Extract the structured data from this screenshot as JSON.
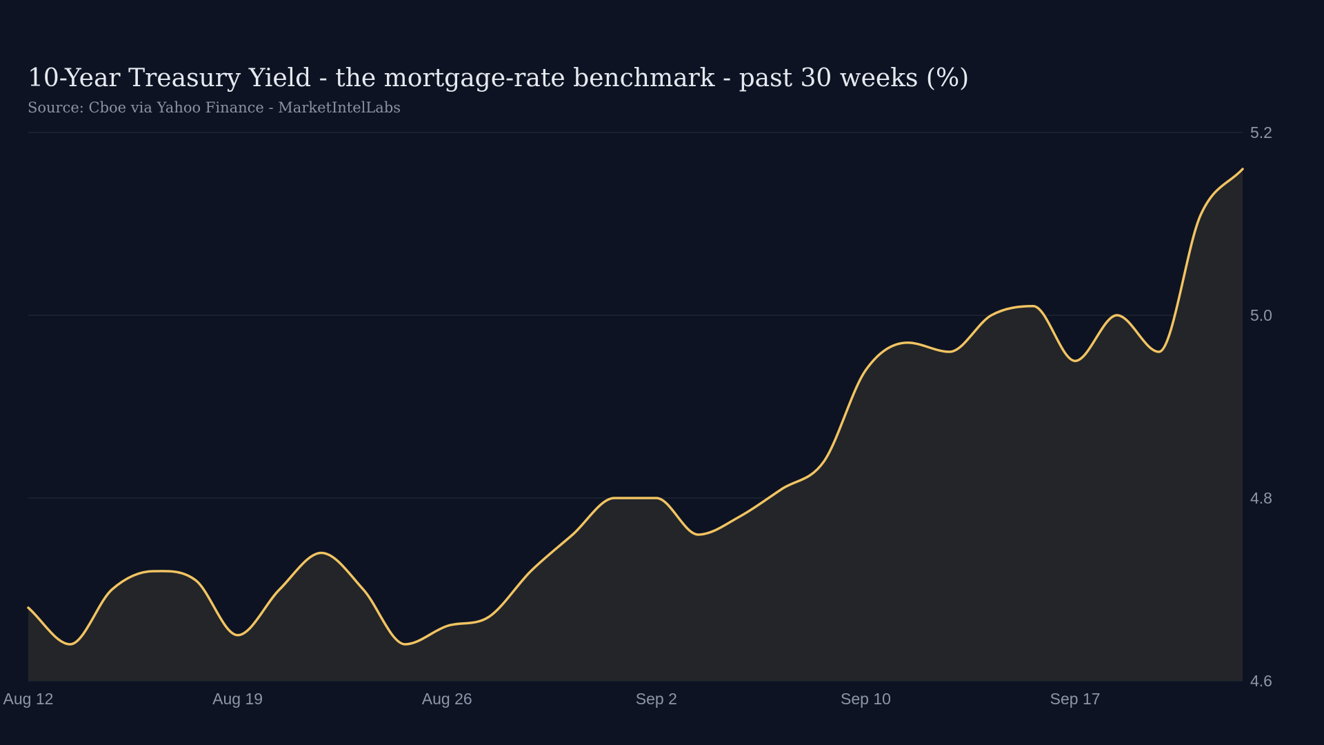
{
  "title": "10-Year Treasury Yield - the mortgage-rate benchmark - past 30 weeks (%)",
  "subtitle": "Source: Cboe via Yahoo Finance - MarketIntelLabs",
  "colors": {
    "background": "#0d1322",
    "line": "#f2c462",
    "area": "#232529",
    "grid": "#252c3a",
    "text": "#e6e9f0",
    "muted": "#8d96a8"
  },
  "chart_data": {
    "type": "area",
    "title": "10-Year Treasury Yield - the mortgage-rate benchmark - past 30 weeks (%)",
    "subtitle": "Source: Cboe via Yahoo Finance - MarketIntelLabs",
    "xlabel": "",
    "ylabel": "",
    "ylim": [
      4.6,
      5.2
    ],
    "yticks": [
      "4.6",
      "4.8",
      "5.0",
      "5.2"
    ],
    "yaxis_side": "right",
    "grid": "horizontal",
    "xticks": [
      {
        "label": "Aug 12",
        "x": "Aug 12"
      },
      {
        "label": "Aug 19",
        "x": "Aug 19"
      },
      {
        "label": "Aug 26",
        "x": "Aug 26"
      },
      {
        "label": "Sep  2",
        "x": "Sep 2"
      },
      {
        "label": "Sep 10",
        "x": "Sep 10"
      },
      {
        "label": "Sep 17",
        "x": "Sep 17"
      }
    ],
    "x": [
      "Aug 12",
      "Aug 13",
      "Aug 14",
      "Aug 15",
      "Aug 16",
      "Aug 19",
      "Aug 20",
      "Aug 21",
      "Aug 22",
      "Aug 23",
      "Aug 26",
      "Aug 27",
      "Aug 28",
      "Aug 29",
      "Aug 30",
      "Sep 2",
      "Sep 3",
      "Sep 4",
      "Sep 5",
      "Sep 6",
      "Sep 10",
      "Sep 11",
      "Sep 12",
      "Sep 13",
      "Sep 16",
      "Sep 17",
      "Sep 18",
      "Sep 19",
      "Sep 20",
      "Sep 21"
    ],
    "series": [
      {
        "values": [
          4.68,
          4.64,
          4.7,
          4.72,
          4.71,
          4.65,
          4.7,
          4.74,
          4.7,
          4.64,
          4.66,
          4.67,
          4.72,
          4.76,
          4.8,
          4.8,
          4.76,
          4.78,
          4.81,
          4.84,
          4.94,
          4.97,
          4.96,
          5.0,
          5.01,
          4.95,
          5.0,
          4.96,
          5.11,
          5.16
        ]
      }
    ]
  }
}
